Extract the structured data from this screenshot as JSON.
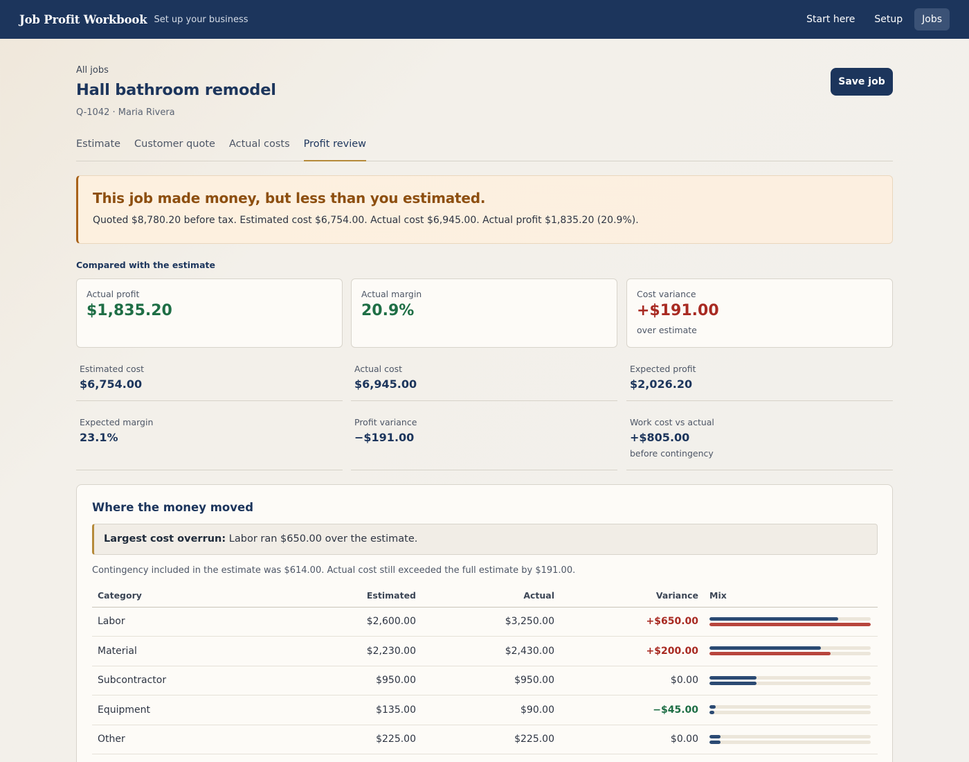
{
  "app": {
    "brand": "Job Profit Workbook",
    "tagline": "Set up your business",
    "nav": [
      "Start here",
      "Setup",
      "Jobs"
    ]
  },
  "header": {
    "breadcrumb": "All jobs",
    "title": "Hall bathroom remodel",
    "meta": "Q-1042 · Maria Rivera",
    "save_label": "Save job"
  },
  "tabs": [
    "Estimate",
    "Customer quote",
    "Actual costs",
    "Profit review"
  ],
  "alert": {
    "title": "This job made money, but less than you estimated.",
    "text": "Quoted $8,780.20 before tax. Estimated cost $6,754.00. Actual cost $6,945.00. Actual profit $1,835.20 (20.9%)."
  },
  "section_label": "Compared with the estimate",
  "kpis": [
    {
      "label": "Actual profit",
      "value": "$1,835.20",
      "sub": ""
    },
    {
      "label": "Actual margin",
      "value": "20.9%",
      "sub": ""
    },
    {
      "label": "Cost variance",
      "value": "+$191.00",
      "sub": "over estimate"
    }
  ],
  "stats": [
    {
      "label": "Estimated cost",
      "value": "$6,754.00",
      "sub": ""
    },
    {
      "label": "Actual cost",
      "value": "$6,945.00",
      "sub": ""
    },
    {
      "label": "Expected profit",
      "value": "$2,026.20",
      "sub": ""
    },
    {
      "label": "Expected margin",
      "value": "23.1%",
      "sub": ""
    },
    {
      "label": "Profit variance",
      "value": "−$191.00",
      "sub": ""
    },
    {
      "label": "Work cost vs actual",
      "value": "+$805.00",
      "sub": "before contingency"
    }
  ],
  "breakdown": {
    "title": "Where the money moved",
    "callout_strong": "Largest cost overrun:",
    "callout_text": " Labor ran $650.00 over the estimate.",
    "note": "Contingency included in the estimate was $614.00. Actual cost still exceeded the full estimate by $191.00.",
    "columns": [
      "Category",
      "Estimated",
      "Actual",
      "Variance",
      "Mix"
    ],
    "rows": [
      {
        "category": "Labor",
        "estimated": "$2,600.00",
        "actual": "$3,250.00",
        "variance": "+$650.00",
        "est_share": 0.8,
        "act_share": 1.0,
        "over": true
      },
      {
        "category": "Material",
        "estimated": "$2,230.00",
        "actual": "$2,430.00",
        "variance": "+$200.00",
        "est_share": 0.69,
        "act_share": 0.75,
        "over": true
      },
      {
        "category": "Subcontractor",
        "estimated": "$950.00",
        "actual": "$950.00",
        "variance": "$0.00",
        "est_share": 0.29,
        "act_share": 0.29,
        "over": false
      },
      {
        "category": "Equipment",
        "estimated": "$135.00",
        "actual": "$90.00",
        "variance": "−$45.00",
        "est_share": 0.04,
        "act_share": 0.03,
        "over": false
      },
      {
        "category": "Other",
        "estimated": "$225.00",
        "actual": "$225.00",
        "variance": "$0.00",
        "est_share": 0.07,
        "act_share": 0.07,
        "over": false
      }
    ]
  }
}
